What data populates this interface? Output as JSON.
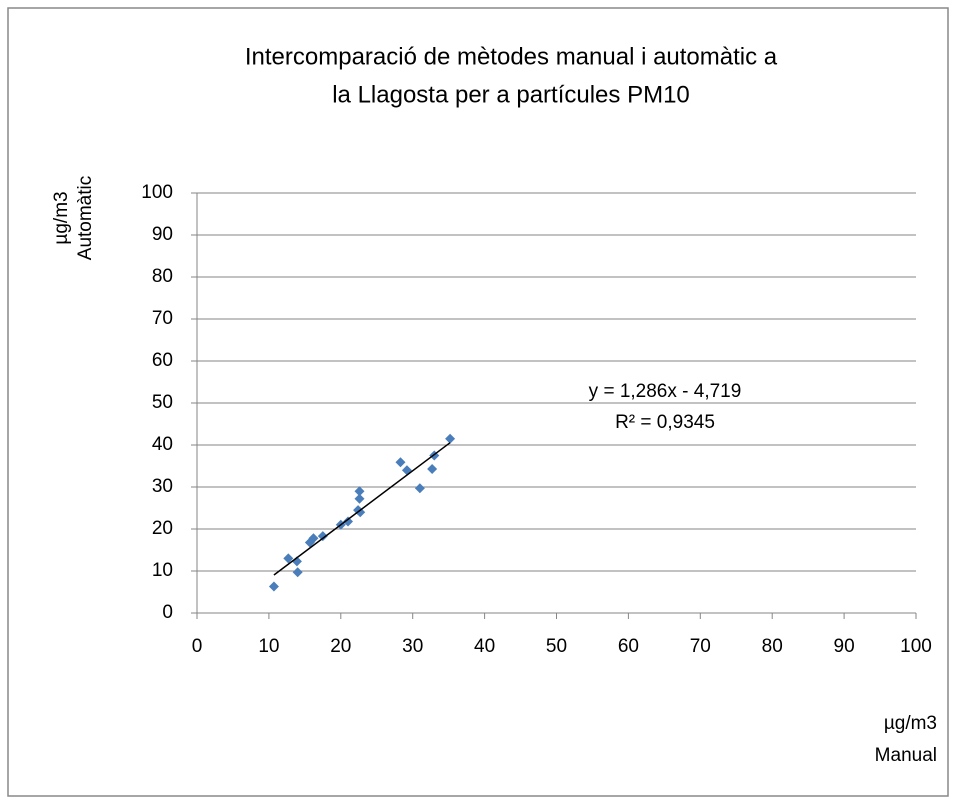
{
  "chart_data": {
    "type": "scatter",
    "title": [
      "Intercomparació de mètodes manual i automàtic a",
      "la Llagosta per a partícules PM10"
    ],
    "x_label": [
      "µg/m3",
      "Manual"
    ],
    "y_label": [
      "µg/m3",
      "Automàtic"
    ],
    "series": [
      {
        "color": "#4a7ebb",
        "x": [
          10.7,
          12.7,
          13.9,
          14,
          15.7,
          16.2,
          17.5,
          20,
          21,
          22.4,
          22.6,
          22.6,
          22.7,
          28.3,
          29.2,
          31,
          32.7,
          33,
          35.2
        ],
        "values": [
          6.3,
          13,
          12.3,
          9.7,
          16.8,
          17.8,
          18.3,
          21,
          21.8,
          24.5,
          29,
          27.2,
          24,
          35.9,
          34,
          29.7,
          34.3,
          37.5,
          41.5
        ]
      }
    ],
    "trendline": {
      "slope": 1.286,
      "intercept": -4.719,
      "equation": "y = 1,286x - 4,719",
      "r2": "R² = 0,9345"
    },
    "xlim": [
      0,
      100
    ],
    "xticks": [
      0,
      10,
      20,
      30,
      40,
      50,
      60,
      70,
      80,
      90,
      100
    ],
    "ylim": [
      0,
      100
    ],
    "yticks": [
      0,
      10,
      20,
      30,
      40,
      50,
      60,
      70,
      80,
      90,
      100
    ],
    "grid": true
  }
}
